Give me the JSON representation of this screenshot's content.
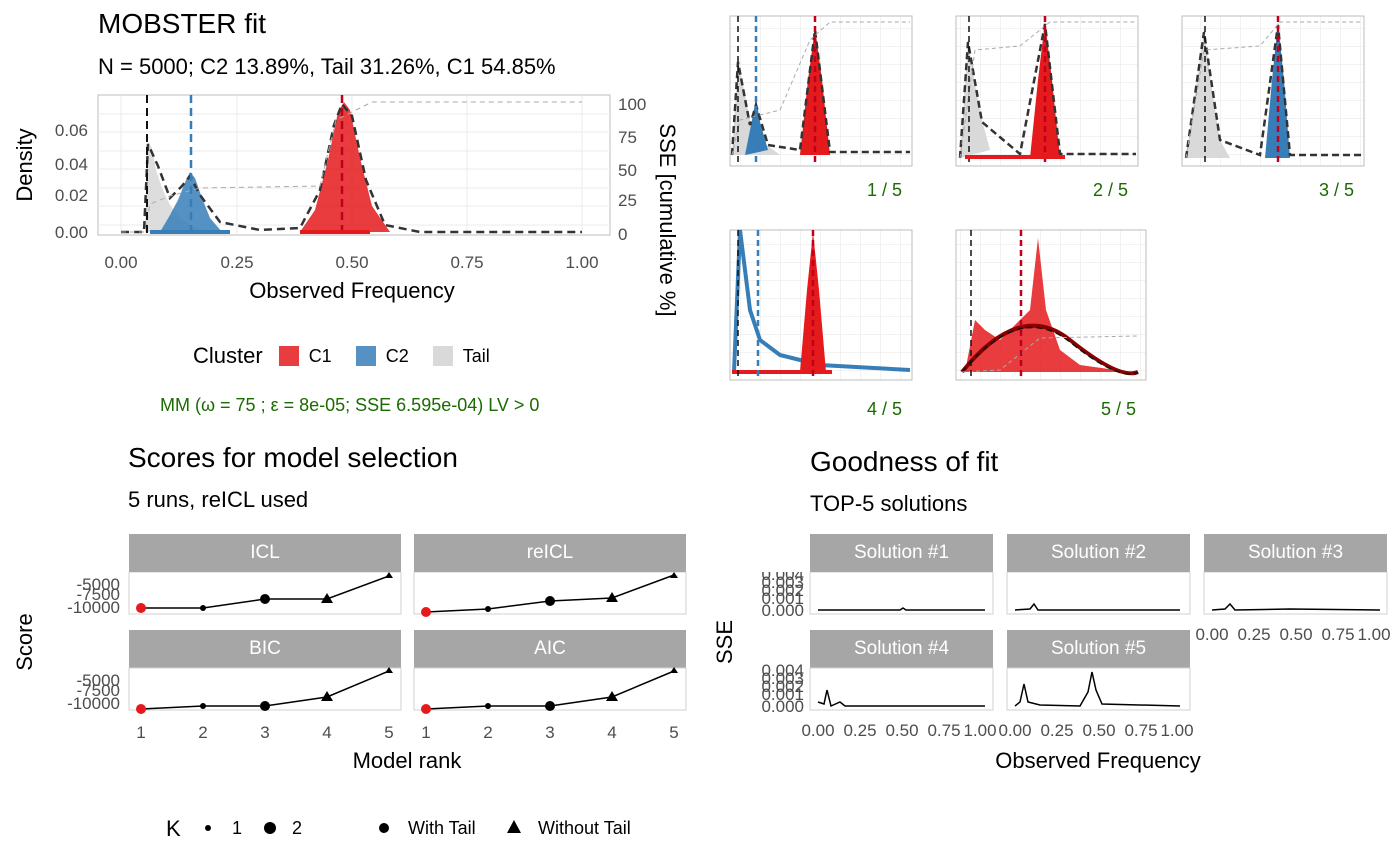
{
  "main": {
    "title": "MOBSTER fit",
    "subtitle": "N = 5000; C2 13.89%, Tail 31.26%, C1 54.85%",
    "ylabel": "Density",
    "y2label": "SSE [cumulative %]",
    "xlabel": "Observed Frequency",
    "xticks": [
      "0.00",
      "0.25",
      "0.50",
      "0.75",
      "1.00"
    ],
    "yticks": [
      "0.00",
      "0.02",
      "0.04",
      "0.06"
    ],
    "y2ticks": [
      "0",
      "25",
      "50",
      "75",
      "100"
    ],
    "caption": "MM (ω = 75 ; ε = 8e-05; SSE 6.595e-04) LV > 0"
  },
  "legend": {
    "title": "Cluster",
    "items": [
      {
        "label": "C1",
        "color": "#e41a1c"
      },
      {
        "label": "C2",
        "color": "#377eb8"
      },
      {
        "label": "Tail",
        "color": "#d9d9d9"
      }
    ]
  },
  "runs": {
    "labels": [
      "1 / 5",
      "2 / 5",
      "3 / 5",
      "4 / 5",
      "5 / 5"
    ]
  },
  "scores": {
    "title": "Scores for model selection",
    "subtitle": "5 runs,  reICL used",
    "ylabel": "Score",
    "xlabel": "Model rank",
    "xticks": [
      "1",
      "2",
      "3",
      "4",
      "5"
    ],
    "yticks": [
      "-5000",
      "-7500",
      "-10000"
    ],
    "panels": [
      "ICL",
      "reICL",
      "BIC",
      "AIC"
    ]
  },
  "scores_legend": {
    "k_title": "K",
    "k_items": [
      "1",
      "2"
    ],
    "tail_items": [
      "With Tail",
      "Without Tail"
    ]
  },
  "gof": {
    "title": "Goodness of fit",
    "subtitle": "TOP-5 solutions",
    "ylabel": "SSE",
    "xlabel": "Observed Frequency",
    "panels": [
      "Solution #1",
      "Solution #2",
      "Solution #3",
      "Solution #4",
      "Solution #5"
    ],
    "yticks": [
      "0.004",
      "0.003",
      "0.002",
      "0.001",
      "0.000"
    ],
    "xticks": [
      "0.00",
      "0.25",
      "0.50",
      "0.75",
      "1.00"
    ]
  },
  "chart_data": [
    {
      "type": "area",
      "title": "MOBSTER fit",
      "xlabel": "Observed Frequency",
      "ylabel": "Density",
      "xlim": [
        0,
        1
      ],
      "ylim": [
        0,
        0.075
      ],
      "series": [
        {
          "name": "C1",
          "color": "#e41a1c",
          "mean": 0.48,
          "peak": 0.068
        },
        {
          "name": "C2",
          "color": "#377eb8",
          "mean": 0.15,
          "peak": 0.03
        },
        {
          "name": "Tail",
          "color": "#d9d9d9",
          "peak": 0.052
        }
      ]
    },
    {
      "type": "line",
      "title": "Scores for model selection",
      "xlabel": "Model rank",
      "ylabel": "Score",
      "x": [
        1,
        2,
        3,
        4,
        5
      ],
      "panels": [
        {
          "name": "ICL",
          "values": [
            -10500,
            -10500,
            -8600,
            -8600,
            -4000
          ]
        },
        {
          "name": "reICL",
          "values": [
            -11500,
            -10800,
            -9000,
            -8500,
            -4000
          ]
        },
        {
          "name": "BIC",
          "values": [
            -11200,
            -10600,
            -10600,
            -8400,
            -4000
          ]
        },
        {
          "name": "AIC",
          "values": [
            -11000,
            -10600,
            -10600,
            -8300,
            -4000
          ]
        }
      ]
    },
    {
      "type": "line",
      "title": "Goodness of fit",
      "xlabel": "Observed Frequency",
      "ylabel": "SSE",
      "xlim": [
        0,
        1
      ],
      "ylim": [
        0,
        0.0045
      ]
    }
  ]
}
